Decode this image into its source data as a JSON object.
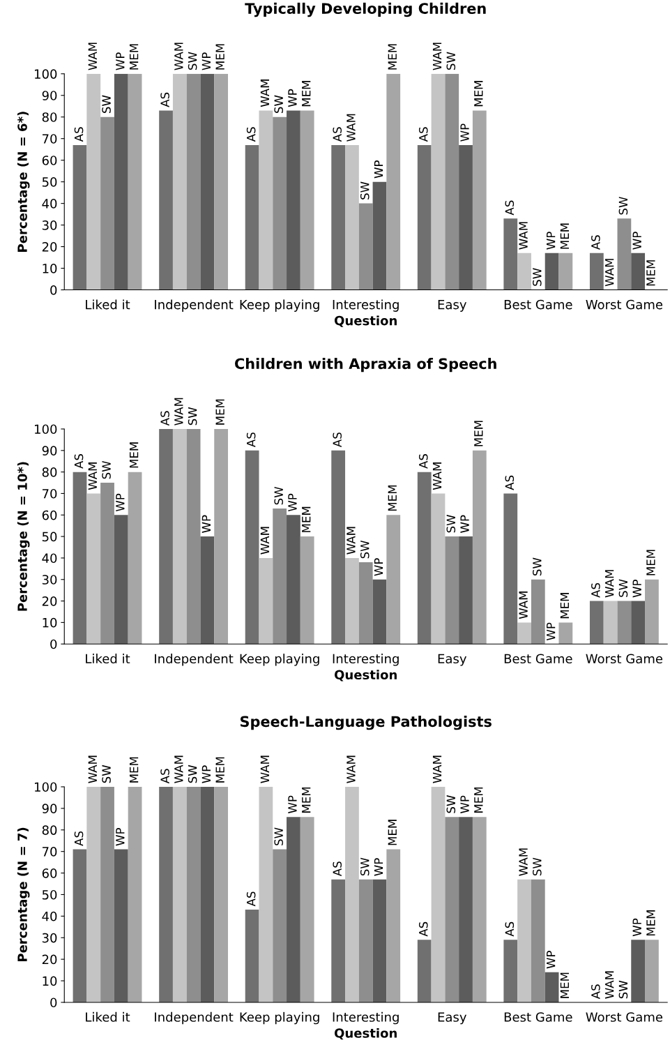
{
  "chart_data": [
    {
      "type": "bar",
      "title": "Typically Developing Children",
      "xlabel": "Question",
      "ylabel": "Percentage (N = 6*)",
      "categories": [
        "Liked it",
        "Independent",
        "Keep playing",
        "Interesting",
        "Easy",
        "Best Game",
        "Worst Game"
      ],
      "ylim": [
        0,
        100
      ],
      "yticks": [
        0,
        10,
        20,
        30,
        40,
        50,
        60,
        70,
        80,
        90,
        100
      ],
      "series": [
        {
          "name": "AS",
          "color": "#707070",
          "values": [
            67,
            83,
            67,
            67,
            67,
            33,
            17
          ]
        },
        {
          "name": "WAM",
          "color": "#c4c4c4",
          "values": [
            100,
            100,
            83,
            67,
            100,
            17,
            0
          ]
        },
        {
          "name": "SW",
          "color": "#8e8e8e",
          "values": [
            80,
            100,
            80,
            40,
            100,
            0,
            33
          ]
        },
        {
          "name": "WP",
          "color": "#5c5c5c",
          "values": [
            100,
            100,
            83,
            50,
            67,
            17,
            17
          ]
        },
        {
          "name": "MEM",
          "color": "#a6a6a6",
          "values": [
            100,
            100,
            83,
            100,
            83,
            17,
            0
          ]
        }
      ]
    },
    {
      "type": "bar",
      "title": "Children with Apraxia of Speech",
      "xlabel": "Question",
      "ylabel": "Percentage (N = 10*)",
      "categories": [
        "Liked it",
        "Independent",
        "Keep playing",
        "Interesting",
        "Easy",
        "Best Game",
        "Worst Game"
      ],
      "ylim": [
        0,
        100
      ],
      "yticks": [
        0,
        10,
        20,
        30,
        40,
        50,
        60,
        70,
        80,
        90,
        100
      ],
      "series": [
        {
          "name": "AS",
          "color": "#707070",
          "values": [
            80,
            100,
            90,
            90,
            80,
            70,
            20
          ]
        },
        {
          "name": "WAM",
          "color": "#c4c4c4",
          "values": [
            70,
            100,
            40,
            40,
            70,
            10,
            20
          ]
        },
        {
          "name": "SW",
          "color": "#8e8e8e",
          "values": [
            75,
            100,
            63,
            38,
            50,
            30,
            20
          ]
        },
        {
          "name": "WP",
          "color": "#5c5c5c",
          "values": [
            60,
            50,
            60,
            30,
            50,
            0,
            20
          ]
        },
        {
          "name": "MEM",
          "color": "#a6a6a6",
          "values": [
            80,
            100,
            50,
            60,
            90,
            10,
            30
          ]
        }
      ]
    },
    {
      "type": "bar",
      "title": "Speech-Language Pathologists",
      "xlabel": "Question",
      "ylabel": "Percentage (N = 7)",
      "categories": [
        "Liked it",
        "Independent",
        "Keep playing",
        "Interesting",
        "Easy",
        "Best Game",
        "Worst Game"
      ],
      "ylim": [
        0,
        100
      ],
      "yticks": [
        0,
        10,
        20,
        30,
        40,
        50,
        60,
        70,
        80,
        90,
        100
      ],
      "series": [
        {
          "name": "AS",
          "color": "#707070",
          "values": [
            71,
            100,
            43,
            57,
            29,
            29,
            0
          ]
        },
        {
          "name": "WAM",
          "color": "#c4c4c4",
          "values": [
            100,
            100,
            100,
            100,
            100,
            57,
            0
          ]
        },
        {
          "name": "SW",
          "color": "#8e8e8e",
          "values": [
            100,
            100,
            71,
            57,
            86,
            57,
            0
          ]
        },
        {
          "name": "WP",
          "color": "#5c5c5c",
          "values": [
            71,
            100,
            86,
            57,
            86,
            14,
            29
          ]
        },
        {
          "name": "MEM",
          "color": "#a6a6a6",
          "values": [
            100,
            100,
            86,
            71,
            86,
            0,
            29
          ]
        }
      ]
    }
  ]
}
